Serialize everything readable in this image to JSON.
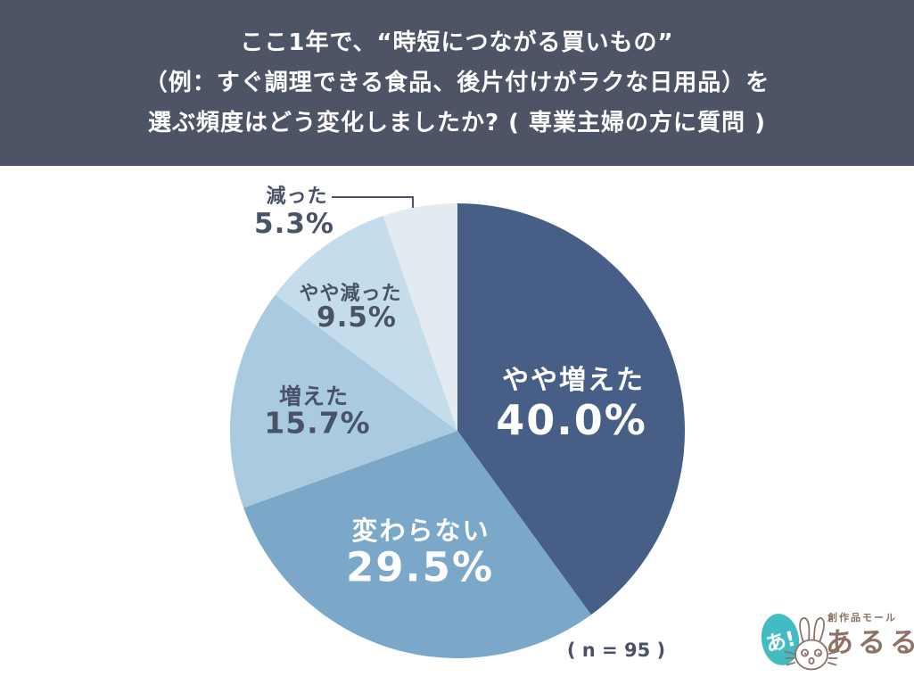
{
  "header": {
    "background": "#4d5466",
    "text_color": "#ffffff",
    "lines": [
      "ここ1年で、“時短につながる買いもの”",
      "（例：すぐ調理できる食品、後片付けがラクな日用品）を",
      "選ぶ頻度はどう変化しましたか? ( 専業主婦の方に質問 )"
    ]
  },
  "chart_data": {
    "type": "pie",
    "title": "ここ1年で、“時短につながる買いもの”（例：すぐ調理できる食品、後片付けがラクな日用品）を選ぶ頻度はどう変化しましたか? ( 専業主婦の方に質問 )",
    "sample_note": "( n = 95 )",
    "start_angle": "12-o-clock",
    "direction": "clockwise",
    "label_color_dark": "#4a5268",
    "segments": [
      {
        "label": "やや増えた",
        "value": 40.0,
        "display": "40.0%",
        "color": "#475f86",
        "text_color": "#ffffff",
        "placement": "inside"
      },
      {
        "label": "変わらない",
        "value": 29.5,
        "display": "29.5%",
        "color": "#7ba7c9",
        "text_color": "#ffffff",
        "placement": "inside"
      },
      {
        "label": "増えた",
        "value": 15.7,
        "display": "15.7%",
        "color": "#aacbdf",
        "text_color": "#4a5268",
        "placement": "outside"
      },
      {
        "label": "やや減った",
        "value": 9.5,
        "display": "9.5%",
        "color": "#c5dcec",
        "text_color": "#4a5268",
        "placement": "outside"
      },
      {
        "label": "減った",
        "value": 5.3,
        "display": "5.3%",
        "color": "#e4ebf0",
        "text_color": "#4a5268",
        "placement": "outside"
      }
    ]
  },
  "logo": {
    "badge_text": "あ!",
    "tagline": "創作品モール",
    "name": "あるる",
    "teal": "#43bcc1",
    "brown": "#8d7265"
  }
}
